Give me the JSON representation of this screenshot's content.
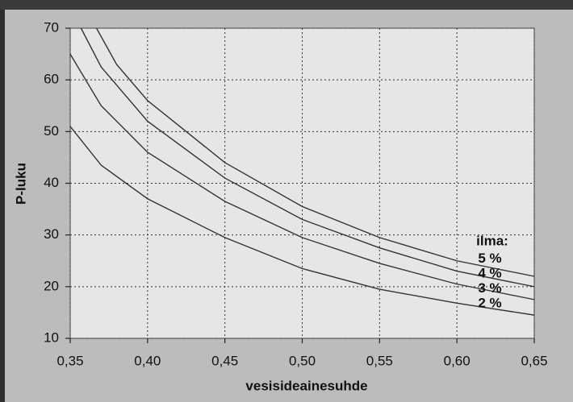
{
  "chart_data": {
    "type": "line",
    "x_label": "vesisideainesuhde",
    "y_label": "P-luku",
    "legend_title": "ilma:",
    "xlim": [
      0.35,
      0.65
    ],
    "ylim": [
      10,
      70
    ],
    "xticks": [
      {
        "value": 0.35,
        "label": "0,35"
      },
      {
        "value": 0.4,
        "label": "0,40"
      },
      {
        "value": 0.45,
        "label": "0,45"
      },
      {
        "value": 0.5,
        "label": "0,50"
      },
      {
        "value": 0.55,
        "label": "0,55"
      },
      {
        "value": 0.6,
        "label": "0,60"
      },
      {
        "value": 0.65,
        "label": "0,65"
      }
    ],
    "yticks": [
      10,
      20,
      30,
      40,
      50,
      60,
      70
    ],
    "grid": true,
    "series": [
      {
        "name": "2 %",
        "color": "#333333",
        "x": [
          0.35,
          0.37,
          0.4,
          0.45,
          0.5,
          0.55,
          0.6,
          0.65
        ],
        "values": [
          51,
          43.5,
          37,
          29.5,
          23.5,
          19.5,
          16.8,
          14.5
        ]
      },
      {
        "name": "3 %",
        "color": "#333333",
        "x": [
          0.35,
          0.37,
          0.4,
          0.45,
          0.5,
          0.55,
          0.6,
          0.65
        ],
        "values": [
          65,
          55,
          46,
          36.5,
          29.5,
          24.5,
          20.5,
          17.5
        ]
      },
      {
        "name": "4 %",
        "color": "#333333",
        "x": [
          0.357,
          0.37,
          0.4,
          0.45,
          0.5,
          0.55,
          0.6,
          0.65
        ],
        "values": [
          70,
          62.5,
          52,
          41,
          33,
          27.5,
          23,
          20
        ]
      },
      {
        "name": "5 %",
        "color": "#333333",
        "x": [
          0.367,
          0.38,
          0.4,
          0.45,
          0.5,
          0.55,
          0.6,
          0.65
        ],
        "values": [
          70,
          63,
          56,
          44,
          35.5,
          29.5,
          25,
          22
        ]
      }
    ]
  }
}
